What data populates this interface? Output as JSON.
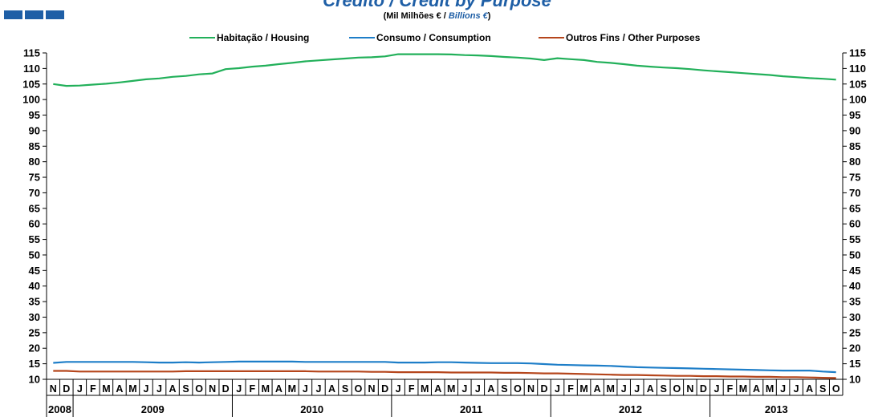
{
  "header": {
    "title": "Crédito / Credit by Purpose",
    "subtitle_pt": "(Mil Milhões € / ",
    "subtitle_en": "Billions €",
    "subtitle_close": ")"
  },
  "colors": {
    "logo": [
      "#1f5fa6",
      "#1f5fa6",
      "#1f5fa6"
    ],
    "grid": "#000000"
  },
  "chart_data": {
    "type": "line",
    "xlabel": "",
    "ylabel": "",
    "ylim": [
      10,
      115
    ],
    "ytick_step": 5,
    "grid": false,
    "legend_position": "top",
    "month_labels": [
      "N",
      "D",
      "J",
      "F",
      "M",
      "A",
      "M",
      "J",
      "J",
      "A",
      "S",
      "O",
      "N",
      "D",
      "J",
      "F",
      "M",
      "A",
      "M",
      "J",
      "J",
      "A",
      "S",
      "O",
      "N",
      "D",
      "J",
      "F",
      "M",
      "A",
      "M",
      "J",
      "J",
      "A",
      "S",
      "O",
      "N",
      "D",
      "J",
      "F",
      "M",
      "A",
      "M",
      "J",
      "J",
      "A",
      "S",
      "O",
      "N",
      "D",
      "J",
      "F",
      "M",
      "A",
      "M",
      "J",
      "J",
      "A",
      "S",
      "O"
    ],
    "year_groups": [
      {
        "label": "2008",
        "months": 2
      },
      {
        "label": "2009",
        "months": 12
      },
      {
        "label": "2010",
        "months": 12
      },
      {
        "label": "2011",
        "months": 12
      },
      {
        "label": "2012",
        "months": 12
      },
      {
        "label": "2013",
        "months": 10
      }
    ],
    "series": [
      {
        "name": "Habitação / Housing",
        "color": "#22b05a",
        "values": [
          105.0,
          104.4,
          104.5,
          104.8,
          105.1,
          105.5,
          106.0,
          106.5,
          106.8,
          107.3,
          107.6,
          108.1,
          108.4,
          109.8,
          110.1,
          110.6,
          110.9,
          111.4,
          111.8,
          112.3,
          112.6,
          112.9,
          113.2,
          113.5,
          113.6,
          113.9,
          114.6,
          114.6,
          114.6,
          114.6,
          114.5,
          114.3,
          114.2,
          114.0,
          113.7,
          113.5,
          113.2,
          112.7,
          113.3,
          113.0,
          112.7,
          112.1,
          111.8,
          111.4,
          110.9,
          110.6,
          110.3,
          110.1,
          109.8,
          109.4,
          109.1,
          108.8,
          108.5,
          108.2,
          107.9,
          107.5,
          107.2,
          106.9,
          106.7,
          106.4
        ]
      },
      {
        "name": "Consumo / Consumption",
        "color": "#1e7ec8",
        "values": [
          15.3,
          15.6,
          15.6,
          15.6,
          15.6,
          15.6,
          15.6,
          15.5,
          15.4,
          15.4,
          15.5,
          15.4,
          15.5,
          15.6,
          15.7,
          15.7,
          15.7,
          15.7,
          15.7,
          15.6,
          15.6,
          15.6,
          15.6,
          15.6,
          15.6,
          15.6,
          15.4,
          15.4,
          15.4,
          15.5,
          15.5,
          15.4,
          15.3,
          15.2,
          15.2,
          15.2,
          15.1,
          14.9,
          14.7,
          14.6,
          14.5,
          14.4,
          14.3,
          14.1,
          13.9,
          13.8,
          13.7,
          13.6,
          13.5,
          13.4,
          13.3,
          13.2,
          13.1,
          13.0,
          12.9,
          12.8,
          12.8,
          12.8,
          12.5,
          12.3
        ]
      },
      {
        "name": "Outros Fins / Other Purposes",
        "color": "#b5461c",
        "values": [
          12.7,
          12.7,
          12.5,
          12.5,
          12.5,
          12.5,
          12.5,
          12.5,
          12.5,
          12.5,
          12.6,
          12.6,
          12.6,
          12.6,
          12.6,
          12.6,
          12.6,
          12.6,
          12.6,
          12.6,
          12.5,
          12.5,
          12.5,
          12.5,
          12.4,
          12.4,
          12.3,
          12.3,
          12.3,
          12.3,
          12.2,
          12.2,
          12.2,
          12.2,
          12.1,
          12.1,
          12.0,
          11.9,
          11.9,
          11.8,
          11.7,
          11.6,
          11.5,
          11.4,
          11.4,
          11.3,
          11.2,
          11.1,
          11.1,
          11.0,
          11.0,
          10.9,
          10.9,
          10.8,
          10.8,
          10.7,
          10.7,
          10.6,
          10.5,
          10.4
        ]
      }
    ]
  }
}
